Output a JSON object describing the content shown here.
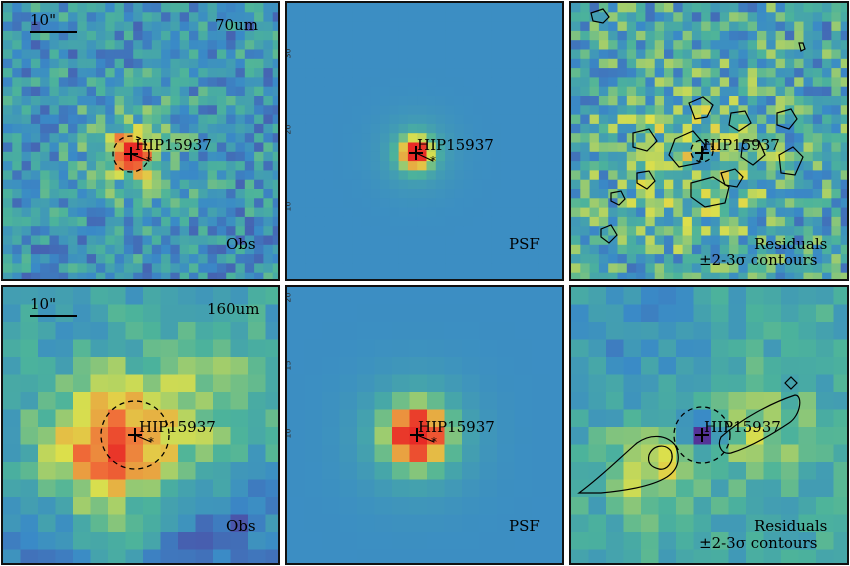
{
  "panels": [
    {
      "id": "70-obs",
      "band": "70um",
      "label": "Obs",
      "source": "HIP15937",
      "scale_bar": "10\""
    },
    {
      "id": "70-psf",
      "band": "",
      "label": "PSF",
      "source": "HIP15937",
      "scale_bar": ""
    },
    {
      "id": "70-res",
      "band": "",
      "label": "Residuals",
      "label2": "±2-3σ contours",
      "source": "HIP15937",
      "scale_bar": ""
    },
    {
      "id": "160-obs",
      "band": "160um",
      "label": "Obs",
      "source": "HIP15937",
      "scale_bar": "10\""
    },
    {
      "id": "160-psf",
      "band": "",
      "label": "PSF",
      "source": "HIP15937",
      "scale_bar": ""
    },
    {
      "id": "160-res",
      "band": "",
      "label": "Residuals",
      "label2": "±2-3σ contours",
      "source": "HIP15937",
      "scale_bar": ""
    }
  ],
  "tick_labels_70_psf_left": [
    "30",
    "20",
    "10"
  ],
  "tick_labels_160_psf_left": [
    "20",
    "15",
    "10"
  ],
  "colors": {
    "low": "#5a1e8c",
    "mid_low": "#3a8ac7",
    "mid": "#4cb39b",
    "mid_high": "#dfe04a",
    "high": "#f0743a",
    "peak": "#e82a26",
    "border": "#111111"
  }
}
